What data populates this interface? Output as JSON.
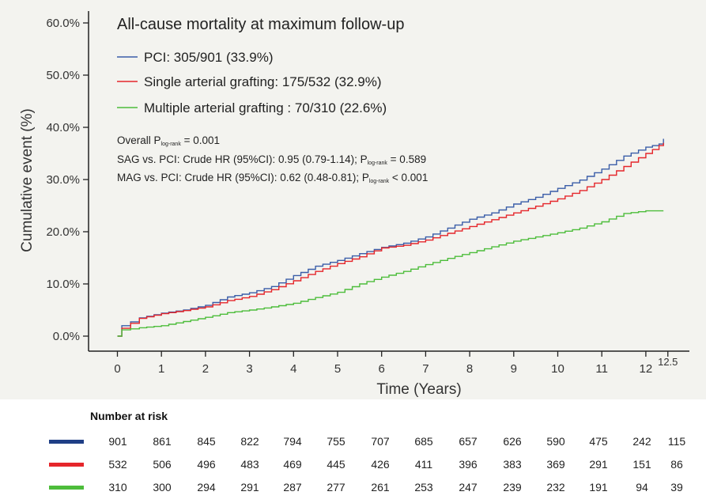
{
  "chart_data": {
    "type": "line",
    "title": "All-cause mortality at maximum follow-up",
    "xlabel": "Time (Years)",
    "ylabel": "Cumulative event (%)",
    "xlim": [
      0,
      12.5
    ],
    "ylim": [
      0,
      60
    ],
    "x_ticks": [
      "0",
      "1",
      "2",
      "3",
      "4",
      "5",
      "6",
      "7",
      "8",
      "9",
      "10",
      "11",
      "12",
      "12.5"
    ],
    "y_ticks": [
      "0.0%",
      "10.0%",
      "20.0%",
      "30.0%",
      "40.0%",
      "50.0%",
      "60.0%"
    ],
    "legend_position": "top-left",
    "series": [
      {
        "name": "PCI: 305/901 (33.9%)",
        "color": "#3a5da8",
        "x": [
          0,
          0.1,
          0.5,
          1,
          1.5,
          2,
          2.5,
          3,
          3.5,
          4,
          4.5,
          5,
          5.5,
          6,
          6.5,
          7,
          7.5,
          8,
          8.5,
          9,
          9.5,
          10,
          10.5,
          11,
          11.5,
          12,
          12.3,
          12.4
        ],
        "y": [
          0,
          2.0,
          3.5,
          4.4,
          5.0,
          5.9,
          7.5,
          8.3,
          9.5,
          11.6,
          13.4,
          14.5,
          15.8,
          17.0,
          17.8,
          19.0,
          20.7,
          22.4,
          23.6,
          25.3,
          26.6,
          28.3,
          29.9,
          32.0,
          34.5,
          36.2,
          36.8,
          37.8
        ]
      },
      {
        "name": "Single arterial grafting: 175/532 (32.9%)",
        "color": "#e5262b",
        "x": [
          0,
          0.1,
          0.5,
          1,
          1.5,
          2,
          2.5,
          3,
          3.5,
          4,
          4.5,
          5,
          5.5,
          6,
          6.5,
          7,
          7.5,
          8,
          8.5,
          9,
          9.5,
          10,
          10.5,
          11,
          11.5,
          12,
          12.3,
          12.4
        ],
        "y": [
          0,
          1.5,
          3.4,
          4.3,
          4.9,
          5.6,
          6.8,
          7.6,
          8.9,
          10.6,
          12.4,
          13.9,
          15.2,
          16.9,
          17.4,
          18.4,
          19.7,
          21.0,
          22.3,
          23.6,
          24.9,
          26.3,
          27.9,
          30.0,
          32.5,
          35.0,
          36.5,
          37.0
        ]
      },
      {
        "name": "Multiple arterial grafting : 70/310 (22.6%)",
        "color": "#4dbd3b",
        "x": [
          0,
          0.1,
          0.5,
          1,
          1.5,
          2,
          2.5,
          3,
          3.5,
          4,
          4.5,
          5,
          5.5,
          6,
          6.5,
          7,
          7.5,
          8,
          8.5,
          9,
          9.5,
          10,
          10.5,
          11,
          11.5,
          12,
          12.4
        ],
        "y": [
          0,
          1.2,
          1.6,
          2.0,
          2.8,
          3.6,
          4.5,
          5.0,
          5.6,
          6.3,
          7.4,
          8.4,
          10.0,
          11.3,
          12.4,
          13.7,
          14.9,
          16.0,
          17.1,
          18.2,
          19.0,
          19.8,
          20.7,
          21.9,
          23.5,
          24.0,
          24.0
        ]
      }
    ],
    "annotations": {
      "overall": "Overall P",
      "overall_sub": "log-rank",
      "overall_val": " = 0.001",
      "sag_main": "SAG vs. PCI: Crude HR (95%CI): 0.95 (0.79-1.14); P",
      "sag_sub": "log-rank",
      "sag_val": " = 0.589",
      "mag_main": "MAG vs. PCI: Crude HR (95%CI): 0.62 (0.48-0.81); P",
      "mag_sub": "log-rank",
      "mag_val": " < 0.001"
    }
  },
  "risk_table": {
    "title": "Number at risk",
    "rows": [
      {
        "color": "#1f3f86",
        "values": [
          "901",
          "861",
          "845",
          "822",
          "794",
          "755",
          "707",
          "685",
          "657",
          "626",
          "590",
          "475",
          "242",
          "115"
        ]
      },
      {
        "color": "#e5262b",
        "values": [
          "532",
          "506",
          "496",
          "483",
          "469",
          "445",
          "426",
          "411",
          "396",
          "383",
          "369",
          "291",
          "151",
          "86"
        ]
      },
      {
        "color": "#4dbd3b",
        "values": [
          "310",
          "300",
          "294",
          "291",
          "287",
          "277",
          "261",
          "253",
          "247",
          "239",
          "232",
          "191",
          "94",
          "39"
        ]
      }
    ]
  }
}
